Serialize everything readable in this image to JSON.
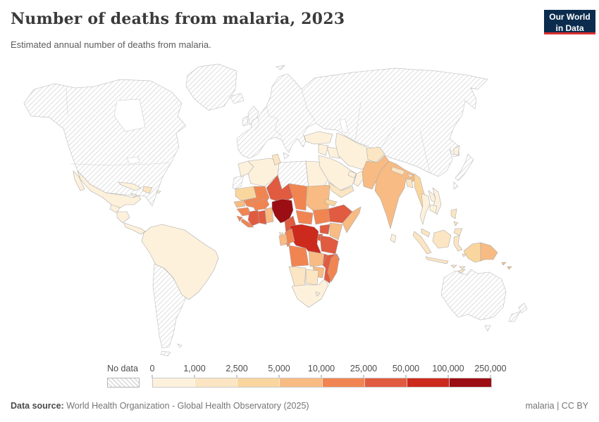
{
  "header": {
    "title": "Number of deaths from malaria, 2023",
    "subtitle": "Estimated annual number of deaths from malaria."
  },
  "logo": {
    "line1": "Our World",
    "line2": "in Data"
  },
  "legend": {
    "no_data_label": "No data"
  },
  "footer": {
    "datasource_label": "Data source:",
    "datasource_text": " World Health Organization - Global Health Observatory (2025)",
    "right_text": "malaria | CC BY"
  },
  "chart_data": {
    "type": "heatmap",
    "subtype": "choropleth-world-map",
    "title": "Number of deaths from malaria, 2023",
    "subtitle": "Estimated annual number of deaths from malaria.",
    "unit": "deaths",
    "year": "2023",
    "legend_position": "bottom",
    "no_data_label": "No data",
    "bin_edges": [
      "0",
      "1,000",
      "2,500",
      "5,000",
      "10,000",
      "25,000",
      "50,000",
      "100,000",
      "250,000"
    ],
    "bin_colors": [
      "#FDF1DC",
      "#FBE5C2",
      "#FAD69F",
      "#F7BB83",
      "#F08552",
      "#E05B3F",
      "#CB2A1D",
      "#9B0E13"
    ],
    "regions_by_bin": {
      "mexico": 1,
      "baja-california": 1,
      "guatemala-belize": 1,
      "honduras-nicaragua": 1,
      "costa-rica-panama": 1,
      "cuba": 1,
      "jamaica": 1,
      "puerto-rico": 1,
      "hispaniola": 2,
      "south-america": 1,
      "morocco": 1,
      "algeria": 1,
      "tunisia": 2,
      "egypt": 1,
      "mauritania": 3,
      "senegal": 4,
      "guinea": 5,
      "sierra-leone": 5,
      "liberia": 5,
      "mali": 5,
      "burkina-faso": 5,
      "cote-divoire": 6,
      "ghana": 6,
      "togo-benin": 4,
      "niger": 6,
      "nigeria": 8,
      "chad": 5,
      "sudan": 4,
      "eritrea": 3,
      "djibouti": 2,
      "ethiopia": 6,
      "somalia": 4,
      "cameroon": 6,
      "central-african-republic": 5,
      "south-sudan": 5,
      "uganda": 6,
      "kenya": 4,
      "drc": 7,
      "congo-republic": 5,
      "gabon": 4,
      "equatorial-guinea": 2,
      "cabinda": 5,
      "rwanda-burundi": 6,
      "tanzania": 6,
      "angola": 5,
      "zambia": 4,
      "malawi": 6,
      "mozambique": 6,
      "zimbabwe": 4,
      "namibia": 2,
      "botswana": 2,
      "south-africa": 1,
      "lesotho": 1,
      "madagascar": 5,
      "turkey": 1,
      "syria-jordan": 1,
      "iraq": 1,
      "iran": 1,
      "saudi-arabia": 1,
      "yemen": 2,
      "oman": 1,
      "uae-qatar": 1,
      "afghanistan": 2,
      "pakistan": 4,
      "india": 4,
      "nepal": 2,
      "bhutan": 2,
      "bangladesh": 2,
      "sri-lanka": 1,
      "myanmar": 3,
      "thailand": 1,
      "laos": 1,
      "vietnam": 1,
      "cambodia": 1,
      "malaysia": 2,
      "north-korea": 1,
      "philippines-luzon": 2,
      "philippines-visayas": 2,
      "philippines-mindanao": 2,
      "sumatra": 2,
      "java": 2,
      "borneo": 2,
      "sulawesi": 2,
      "lesser-sunda-1": 2,
      "lesser-sunda-2": 2,
      "maluku": 2,
      "timor": 2,
      "west-papua": 3,
      "papua-new-guinea": 4,
      "solomon-1": 4,
      "solomon-2": 4
    },
    "no_data_regions": [
      "canada-usa-greenland",
      "europe-russia-china",
      "australia",
      "argentina-chile",
      "japan",
      "libya",
      "western-sahara",
      "french-guiana",
      "new-zealand",
      "iceland",
      "uk",
      "ireland",
      "taiwan"
    ]
  }
}
